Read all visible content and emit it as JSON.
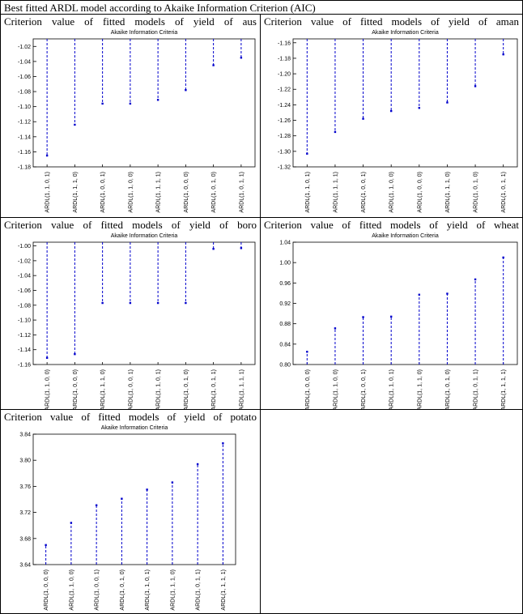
{
  "caption": "Best fitted ARDL model according to Akaike Information Criterion (AIC)",
  "chart_data": [
    {
      "type": "spike",
      "title": "Criterion value of fitted models of yield of aus",
      "subtitle": "Akaike Information Criteria",
      "color": "#0000cc",
      "categories": [
        "ARDL(1, 1, 0, 1)",
        "ARDL(1, 1, 1, 0)",
        "ARDL(1, 0, 0, 1)",
        "ARDL(1, 1, 0, 0)",
        "ARDL(1, 1, 1, 1)",
        "ARDL(1, 0, 0, 0)",
        "ARDL(1, 0, 1, 0)",
        "ARDL(1, 0, 1, 1)"
      ],
      "values": [
        -1.165,
        -1.124,
        -1.096,
        -1.096,
        -1.091,
        -1.078,
        -1.045,
        -1.035
      ],
      "ylim": [
        -1.18,
        -1.01
      ],
      "yticks": [
        -1.18,
        -1.16,
        -1.14,
        -1.12,
        {
          "value": -1.1,
          "label": "-1.10"
        },
        -1.08,
        -1.06,
        -1.04,
        -1.02
      ]
    },
    {
      "type": "spike",
      "title": "Criterion value of fitted models of yield of aman",
      "subtitle": "Akaike Information Criteria",
      "color": "#0000cc",
      "categories": [
        "ARDL(1, 1, 0, 1)",
        "ARDL(1, 1, 1, 1)",
        "ARDL(1, 0, 0, 1)",
        "ARDL(1, 1, 0, 0)",
        "ARDL(1, 0, 0, 0)",
        "ARDL(1, 1, 1, 0)",
        "ARDL(1, 0, 1, 0)",
        "ARDL(1, 0, 1, 1)"
      ],
      "values": [
        -1.303,
        -1.275,
        -1.258,
        -1.248,
        -1.244,
        -1.237,
        -1.216,
        -1.175
      ],
      "ylim": [
        -1.32,
        -1.155
      ],
      "yticks": [
        -1.32,
        {
          "value": -1.3,
          "label": "-1.30"
        },
        -1.28,
        -1.26,
        -1.24,
        -1.22,
        {
          "value": -1.2,
          "label": "-1.20"
        },
        -1.18,
        -1.16
      ]
    },
    {
      "type": "spike",
      "title": "Criterion value of fitted models of yield of boro",
      "subtitle": "Akaike Information Criteria",
      "color": "#0000cc",
      "categories": [
        "ARDL(1, 1, 0, 0)",
        "ARDL(1, 0, 0, 0)",
        "ARDL(1, 1, 1, 0)",
        "ARDL(1, 0, 0, 1)",
        "ARDL(1, 1, 0, 1)",
        "ARDL(1, 0, 1, 0)",
        "ARDL(1, 0, 1, 1)",
        "ARDL(1, 1, 1, 1)"
      ],
      "values": [
        -1.151,
        -1.146,
        -1.077,
        -1.077,
        -1.077,
        -1.077,
        -1.004,
        -1.003
      ],
      "ylim": [
        -1.16,
        -0.995
      ],
      "yticks": [
        -1.16,
        -1.14,
        -1.12,
        {
          "value": -1.1,
          "label": "-1.10"
        },
        -1.08,
        -1.06,
        -1.04,
        -1.02,
        {
          "value": -1,
          "label": "-1.00"
        }
      ]
    },
    {
      "type": "spike",
      "title": "Criterion value of fitted models of yield of wheat",
      "subtitle": "Akaike Information Criteria",
      "color": "#0000cc",
      "categories": [
        "ARDL(1, 0, 0, 0)",
        "ARDL(1, 1, 0, 0)",
        "ARDL(1, 0, 0, 1)",
        "ARDL(1, 1, 0, 1)",
        "ARDL(1, 1, 1, 0)",
        "ARDL(1, 0, 1, 0)",
        "ARDL(1, 0, 1, 1)",
        "ARDL(1, 1, 1, 1)"
      ],
      "values": [
        0.825,
        0.871,
        0.893,
        0.894,
        0.937,
        0.939,
        0.967,
        1.01
      ],
      "ylim": [
        0.8,
        1.04
      ],
      "yticks": [
        {
          "value": 0.8,
          "label": "0.80"
        },
        0.84,
        0.88,
        0.92,
        0.96,
        {
          "value": 1,
          "label": "1.00"
        },
        1.04
      ]
    },
    {
      "type": "spike",
      "title": "Criterion value of fitted models of yield of potato",
      "subtitle": "Akaike Information Criteria",
      "color": "#0000cc",
      "categories": [
        "ARDL(1, 0, 0, 0)",
        "ARDL(1, 1, 0, 0)",
        "ARDL(1, 0, 0, 1)",
        "ARDL(1, 0, 1, 0)",
        "ARDL(1, 1, 0, 1)",
        "ARDL(1, 1, 1, 0)",
        "ARDL(1, 0, 1, 1)",
        "ARDL(1, 1, 1, 1)"
      ],
      "values": [
        3.67,
        3.704,
        3.731,
        3.741,
        3.755,
        3.766,
        3.794,
        3.826
      ],
      "ylim": [
        3.64,
        3.84
      ],
      "yticks": [
        3.64,
        3.68,
        3.72,
        3.76,
        {
          "value": 3.8,
          "label": "3.80"
        },
        3.84
      ]
    }
  ]
}
